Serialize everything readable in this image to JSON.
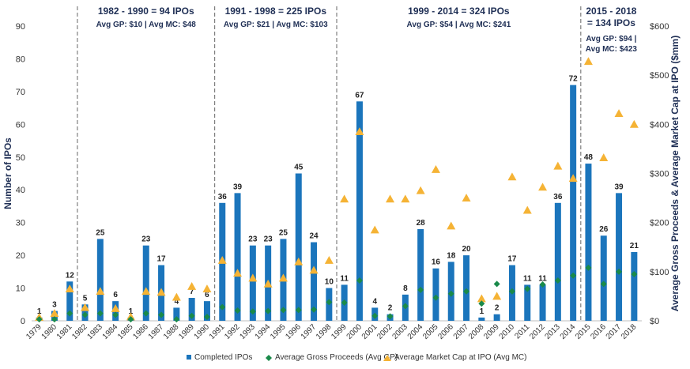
{
  "chart_data": {
    "type": "bar",
    "categories": [
      "1979",
      "1980",
      "1981",
      "1982",
      "1983",
      "1984",
      "1985",
      "1986",
      "1987",
      "1988",
      "1989",
      "1990",
      "1991",
      "1992",
      "1993",
      "1994",
      "1995",
      "1996",
      "1997",
      "1998",
      "1999",
      "2000",
      "2001",
      "2002",
      "2003",
      "2004",
      "2005",
      "2006",
      "2007",
      "2008",
      "2009",
      "2010",
      "2011",
      "2012",
      "2013",
      "2014",
      "2015",
      "2016",
      "2017",
      "2018"
    ],
    "series": [
      {
        "name": "Completed IPOs",
        "kind": "bar",
        "axis": "left",
        "color": "#1b75bc",
        "values": [
          1,
          3,
          12,
          5,
          25,
          6,
          1,
          23,
          17,
          4,
          7,
          6,
          36,
          39,
          23,
          23,
          25,
          45,
          24,
          10,
          11,
          67,
          4,
          2,
          8,
          28,
          16,
          18,
          20,
          1,
          2,
          17,
          11,
          11,
          36,
          72,
          48,
          26,
          39,
          21
        ]
      },
      {
        "name": "Average Gross Proceeds (Avg GP)",
        "kind": "marker-diamond",
        "axis": "right",
        "color": "#1a8a4a",
        "values": [
          3,
          3,
          15,
          12,
          15,
          12,
          3,
          15,
          12,
          3,
          10,
          8,
          28,
          21,
          19,
          20,
          22,
          22,
          23,
          38,
          37,
          82,
          10,
          9,
          30,
          63,
          47,
          55,
          60,
          35,
          75,
          60,
          65,
          74,
          82,
          92,
          108,
          75,
          100,
          95
        ]
      },
      {
        "name": "Average Market Cap at IPO (Avg MC)",
        "kind": "marker-triangle",
        "axis": "right",
        "color": "#f5b335",
        "values": [
          7,
          15,
          65,
          27,
          60,
          25,
          8,
          60,
          58,
          48,
          70,
          65,
          123,
          97,
          87,
          75,
          87,
          120,
          103,
          123,
          248,
          385,
          185,
          248,
          248,
          265,
          308,
          193,
          250,
          45,
          50,
          293,
          225,
          272,
          315,
          290,
          528,
          332,
          422,
          400
        ]
      }
    ],
    "ylabel_left": "Number of IPOs",
    "ylabel_right": "Average Gross Proceeds & Average Market Cap at IPO ($mm)",
    "ylim_left": [
      0,
      90
    ],
    "yticks_left": [
      "0",
      "10",
      "20",
      "30",
      "40",
      "50",
      "60",
      "70",
      "80",
      "90"
    ],
    "ylim_right": [
      0,
      600
    ],
    "yticks_right": [
      "$0",
      "$100",
      "$200",
      "$300",
      "$400",
      "$500",
      "$600"
    ],
    "grid": false,
    "legend_position": "bottom",
    "periods": [
      {
        "title": "1982 - 1990 = 94 IPOs",
        "subtitle": "Avg GP: $10 | Avg MC: $48",
        "start_index": 3,
        "end_index": 11
      },
      {
        "title": "1991 - 1998 = 225 IPOs",
        "subtitle": "Avg GP: $21 | Avg MC: $103",
        "start_index": 12,
        "end_index": 19
      },
      {
        "title": "1999 - 2014 = 324 IPOs",
        "subtitle": "Avg GP: $54 | Avg MC: $241",
        "start_index": 20,
        "end_index": 35
      },
      {
        "title_lines": [
          "2015 - 2018",
          "= 134 IPOs"
        ],
        "subtitle_lines": [
          "Avg GP: $94 |",
          "Avg MC: $423"
        ],
        "start_index": 36,
        "end_index": 39
      }
    ]
  }
}
